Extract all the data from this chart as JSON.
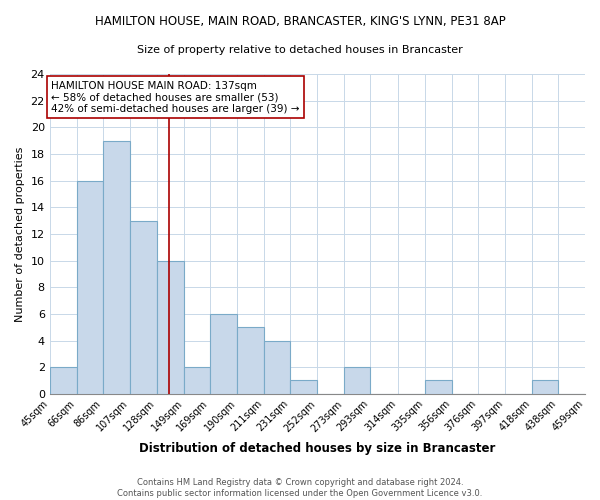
{
  "title": "HAMILTON HOUSE, MAIN ROAD, BRANCASTER, KING'S LYNN, PE31 8AP",
  "subtitle": "Size of property relative to detached houses in Brancaster",
  "xlabel": "Distribution of detached houses by size in Brancaster",
  "ylabel": "Number of detached properties",
  "bin_edges": [
    45,
    66,
    86,
    107,
    128,
    149,
    169,
    190,
    211,
    231,
    252,
    273,
    293,
    314,
    335,
    356,
    376,
    397,
    418,
    438,
    459
  ],
  "bar_heights": [
    2,
    16,
    19,
    13,
    10,
    2,
    6,
    5,
    4,
    1,
    0,
    2,
    0,
    0,
    1,
    0,
    0,
    0,
    1,
    0
  ],
  "bar_color": "#c8d8ea",
  "bar_edge_color": "#7aaac8",
  "property_size": 137,
  "red_line_color": "#aa0000",
  "ylim": [
    0,
    24
  ],
  "yticks": [
    0,
    2,
    4,
    6,
    8,
    10,
    12,
    14,
    16,
    18,
    20,
    22,
    24
  ],
  "annotation_line1": "HAMILTON HOUSE MAIN ROAD: 137sqm",
  "annotation_line2": "← 58% of detached houses are smaller (53)",
  "annotation_line3": "42% of semi-detached houses are larger (39) →",
  "footer_line1": "Contains HM Land Registry data © Crown copyright and database right 2024.",
  "footer_line2": "Contains public sector information licensed under the Open Government Licence v3.0.",
  "background_color": "#ffffff",
  "grid_color": "#c8d8e8"
}
